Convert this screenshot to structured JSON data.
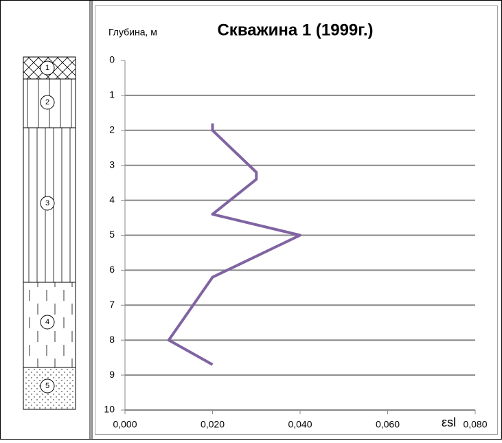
{
  "chart_data": {
    "type": "line",
    "title": "Скважина 1 (1999г.)",
    "y_label": "Глубина, м",
    "x_label": "εsl",
    "x": [
      0.02,
      0.02,
      0.03,
      0.03,
      0.02,
      0.04,
      0.02,
      0.01,
      0.02
    ],
    "values": [
      1.8,
      2.0,
      3.2,
      3.4,
      4.4,
      5.0,
      6.2,
      8.0,
      8.7
    ],
    "color": "#8064a2",
    "xlim": [
      0,
      0.08
    ],
    "xticks": [
      {
        "value": 0,
        "label": "0,000"
      },
      {
        "value": 0.02,
        "label": "0,020"
      },
      {
        "value": 0.04,
        "label": "0,040"
      },
      {
        "value": 0.06,
        "label": "0,060"
      },
      {
        "value": 0.08,
        "label": "0,080"
      }
    ],
    "ylim": [
      0,
      10
    ],
    "yticks": [
      0,
      1,
      2,
      3,
      4,
      5,
      6,
      7,
      8,
      9,
      10
    ],
    "y_inverted": true,
    "grid": true
  },
  "column": {
    "layers": [
      "1",
      "2",
      "3",
      "4",
      "5"
    ]
  }
}
